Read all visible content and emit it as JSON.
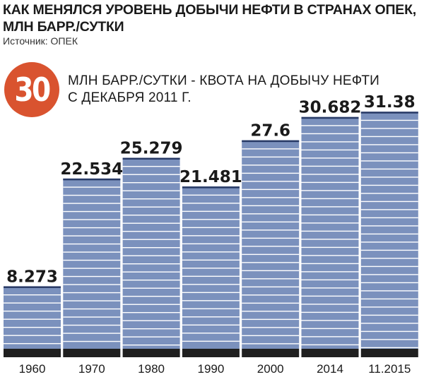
{
  "title_lines": [
    "КАК МЕНЯЛСЯ УРОВЕНЬ ДОБЫЧИ НЕФТИ В СТРАНАХ ОПЕК,",
    "МЛН БАРР./СУТКИ"
  ],
  "source": "Источник: ОПЕК",
  "quota": {
    "value": "30",
    "text_lines": [
      "МЛН БАРР./СУТКИ - КВОТА НА ДОБЫЧУ НЕФТИ",
      "С ДЕКАБРЯ 2011 Г."
    ]
  },
  "colors": {
    "bar": "#7b91bd",
    "bar_stripe": "#ffffff",
    "bar_top": "#283a66",
    "baseline": "#1f1f1f",
    "badge": "#d9532f"
  },
  "chart_data": {
    "type": "bar",
    "title": "КАК МЕНЯЛСЯ УРОВЕНЬ ДОБЫЧИ НЕФТИ В СТРАНАХ ОПЕК, МЛН БАРР./СУТКИ",
    "xlabel": "",
    "ylabel": "",
    "categories": [
      "1960",
      "1970",
      "1980",
      "1990",
      "2000",
      "2014",
      "11.2015"
    ],
    "values": [
      8.273,
      22.534,
      25.279,
      21.481,
      27.6,
      30.682,
      31.38
    ],
    "value_labels": [
      "8.273",
      "22.534",
      "25.279",
      "21.481",
      "27.6",
      "30.682",
      "31.38"
    ],
    "grid": false,
    "legend": "none"
  }
}
